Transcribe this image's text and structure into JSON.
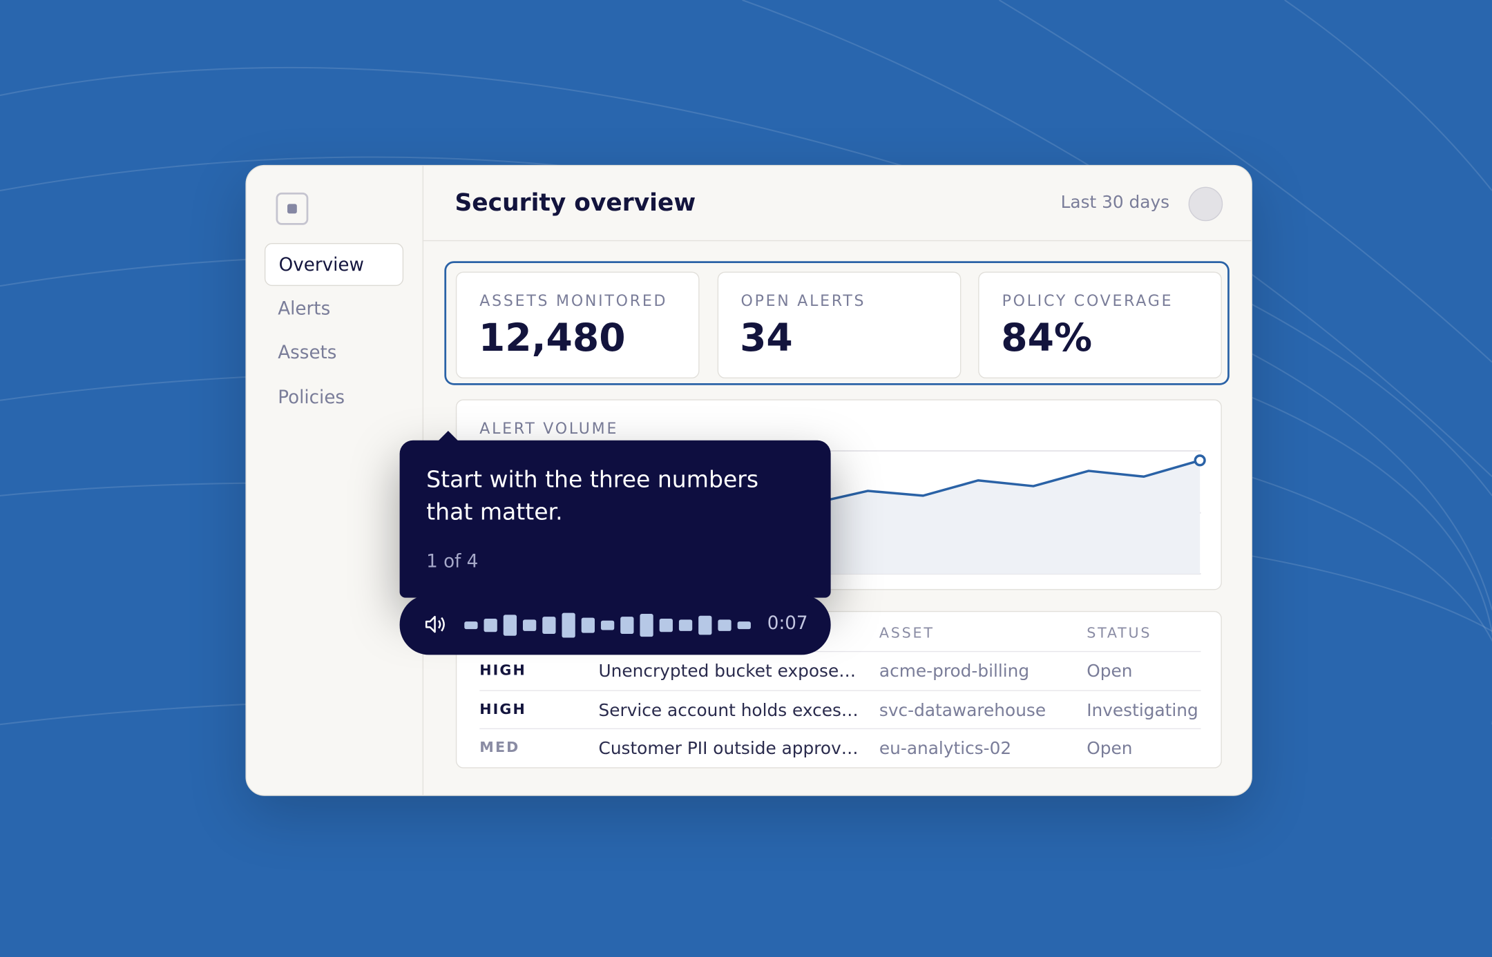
{
  "sidebar": {
    "nav": [
      "Overview",
      "Alerts",
      "Assets",
      "Policies"
    ],
    "active_index": 0
  },
  "header": {
    "title": "Security overview",
    "range": "Last 30 days"
  },
  "kpis": [
    {
      "label": "ASSETS MONITORED",
      "value": "12,480"
    },
    {
      "label": "OPEN ALERTS",
      "value": "34"
    },
    {
      "label": "POLICY COVERAGE",
      "value": "84%"
    }
  ],
  "alert_volume": {
    "title": "ALERT VOLUME"
  },
  "table": {
    "columns": [
      "ASSET",
      "STATUS"
    ],
    "rows": [
      [
        "HIGH",
        "Unencrypted bucket expose…",
        "acme-prod-billing",
        "Open"
      ],
      [
        "HIGH",
        "Service account holds exces…",
        "svc-datawarehouse",
        "Investigating"
      ],
      [
        "MED",
        "Customer PII outside approv…",
        "eu-analytics-02",
        "Open"
      ]
    ]
  },
  "tooltip": {
    "text": "Start with the three numbers that matter.",
    "step": "1 of 4",
    "audio_time": "0:07"
  }
}
